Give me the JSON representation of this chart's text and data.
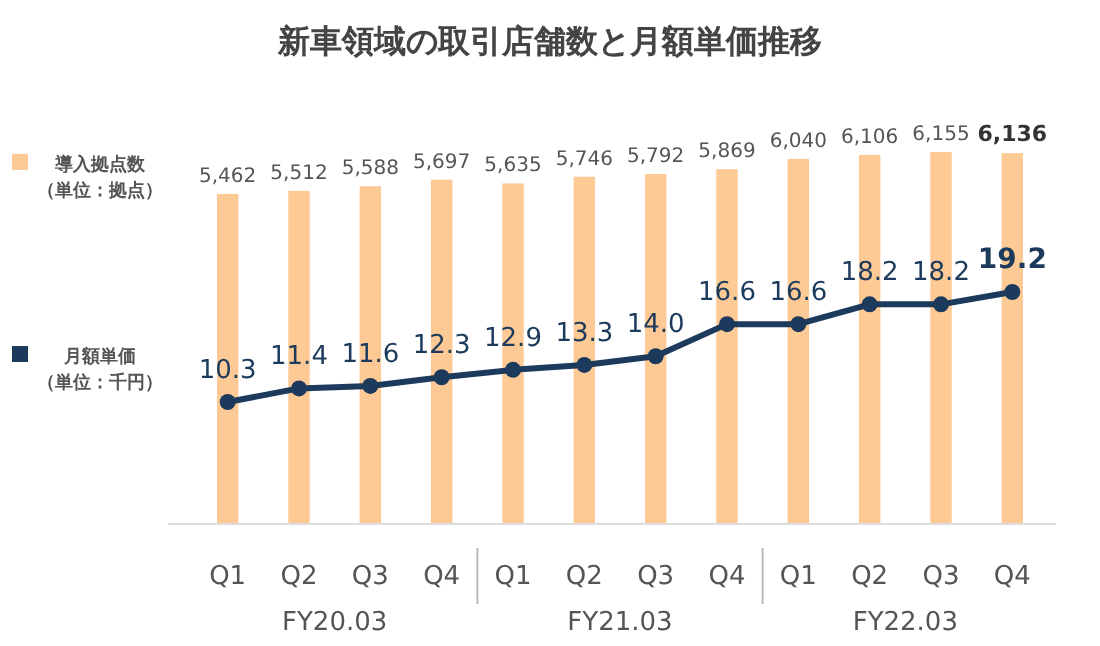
{
  "chart_data": {
    "type": "bar",
    "title": "新車領域の取引店舗数と月額単価推移",
    "categories": [
      "Q1",
      "Q2",
      "Q3",
      "Q4",
      "Q1",
      "Q2",
      "Q3",
      "Q4",
      "Q1",
      "Q2",
      "Q3",
      "Q4"
    ],
    "series": [
      {
        "name": "導入拠点数（単位：拠点）",
        "color": "#fdc994",
        "values": [
          5462,
          5512,
          5588,
          5697,
          5635,
          5746,
          5792,
          5869,
          6040,
          6106,
          6155,
          6136
        ],
        "value_labels": [
          "5,462",
          "5,512",
          "5,588",
          "5,697",
          "5,635",
          "5,746",
          "5,792",
          "5,869",
          "6,040",
          "6,106",
          "6,155",
          "6,136"
        ]
      },
      {
        "name": "月額単価（単位：千円）",
        "type": "line",
        "axis": "y2",
        "color": "#1b3a5c",
        "marker": "circle",
        "values": [
          10.3,
          11.4,
          11.6,
          12.3,
          12.9,
          13.3,
          14.0,
          16.6,
          16.6,
          18.2,
          18.2,
          19.2
        ],
        "value_labels": [
          "10.3",
          "11.4",
          "11.6",
          "12.3",
          "12.9",
          "13.3",
          "14.0",
          "16.6",
          "16.6",
          "18.2",
          "18.2",
          "19.2"
        ]
      }
    ],
    "annotations": [
      "FY20.03",
      "FY21.03",
      "FY22.03"
    ],
    "legend": "left",
    "grid": false
  }
}
